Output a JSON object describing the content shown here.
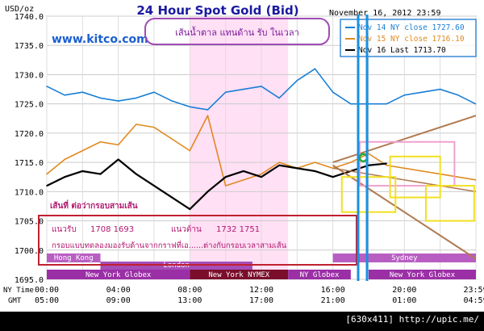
{
  "chart_data": {
    "type": "line",
    "title": "24 Hour Spot Gold (Bid)",
    "ylabel": "USD/oz",
    "ylim": [
      1695,
      1740
    ],
    "y_ticks": [
      "1740.0",
      "1735.0",
      "1730.0",
      "1725.0",
      "1720.0",
      "1715.0",
      "1710.0",
      "1705.0",
      "1700.0",
      "1695.0"
    ],
    "x_ticks_ny": [
      "00:00",
      "04:00",
      "08:00",
      "12:00",
      "16:00",
      "20:00",
      "23:59"
    ],
    "x_ticks_gmt": [
      "05:00",
      "09:00",
      "13:00",
      "17:00",
      "21:00",
      "01:00",
      "04:59"
    ],
    "x_row_labels": [
      "NY Time",
      "GMT"
    ],
    "date_label": "November 16, 2012 23:59",
    "website": "www.kitco.com",
    "series": [
      {
        "name": "Nov 14 NY close 1727.60",
        "color": "#1a7fd4",
        "x": [
          0,
          1,
          2,
          3,
          4,
          5,
          6,
          7,
          8,
          9,
          10,
          11,
          12,
          13,
          14,
          15,
          16,
          17,
          18,
          19,
          20,
          21,
          22,
          23,
          23.98
        ],
        "values": [
          1728,
          1726.5,
          1727,
          1726,
          1725.5,
          1726,
          1727,
          1725.5,
          1724.5,
          1724,
          1727,
          1727.5,
          1728,
          1726,
          1729,
          1731,
          1727,
          1725,
          1725,
          1725,
          1726.5,
          1727,
          1727.5,
          1726.5,
          1725
        ]
      },
      {
        "name": "Nov 15 NY close 1716.10",
        "color": "#e08a1e",
        "x": [
          0,
          1,
          2,
          3,
          4,
          5,
          6,
          7,
          8,
          9,
          10,
          11,
          12,
          13,
          14,
          15,
          16,
          17,
          18,
          19,
          20,
          21,
          22,
          23,
          23.98
        ],
        "values": [
          1713,
          1715.5,
          1717,
          1718.5,
          1718,
          1721.5,
          1721,
          1719,
          1717,
          1723,
          1711,
          1712,
          1713,
          1715,
          1714,
          1715,
          1714,
          1715,
          1716.5,
          1714.5,
          1714,
          1713.5,
          1713,
          1712.5,
          1712
        ]
      },
      {
        "name": "Nov 16 Last 1713.70",
        "color": "#000000",
        "x": [
          0,
          1,
          2,
          3,
          4,
          5,
          6,
          7,
          8,
          9,
          10,
          11,
          12,
          13,
          14,
          15,
          16,
          17,
          18,
          19
        ],
        "values": [
          1711,
          1712.5,
          1713.5,
          1713,
          1715.5,
          1713,
          1711,
          1709,
          1707,
          1710,
          1712.5,
          1713.5,
          1712.5,
          1714.5,
          1714,
          1713.5,
          1712.5,
          1713.5,
          1714.5,
          1714.8
        ]
      }
    ],
    "sessions_row1": [
      {
        "label": "Hong Kong",
        "start": 0,
        "end": 3
      },
      {
        "label": "Hong Kong",
        "start": 19.5,
        "end": 24
      },
      {
        "label": "Sydney",
        "start": 16,
        "end": 24
      }
    ],
    "sessions_row2": [
      {
        "label": "London",
        "start": 3,
        "end": 11.5
      }
    ],
    "sessions_row3": [
      {
        "label": "New York Globex",
        "start": 0,
        "end": 8
      },
      {
        "label": "New York NYMEX",
        "start": 8,
        "end": 13.5
      },
      {
        "label": "NY Globex",
        "start": 13.5,
        "end": 17
      },
      {
        "label": "New York Globex",
        "start": 18,
        "end": 24
      }
    ],
    "annotations": {
      "trend_label": "เส้นน้ำตาล แทนด้าน รับ ในเวลา",
      "pink_note": "เส้นที่ ต่อว่ากรอบสามเส้น",
      "support_label": "แนวรับ",
      "support_values": "1708 1693",
      "resistance_label": "แนวต้าน",
      "resistance_values": "1732 1751",
      "bottom_note": "กรอบแบบทดลองมองรับด้านจากกราฟที่เอ......ต่างกับกรอบเวลาสามเส้น"
    },
    "colors": {
      "highlight": "#ff9be8",
      "sessions_purple": "#9b2fa6",
      "nymex_maroon": "#7a0e2b",
      "legend_border": "#3a88d6"
    }
  },
  "footer": {
    "text": "[630x411] http://upic.me/"
  }
}
